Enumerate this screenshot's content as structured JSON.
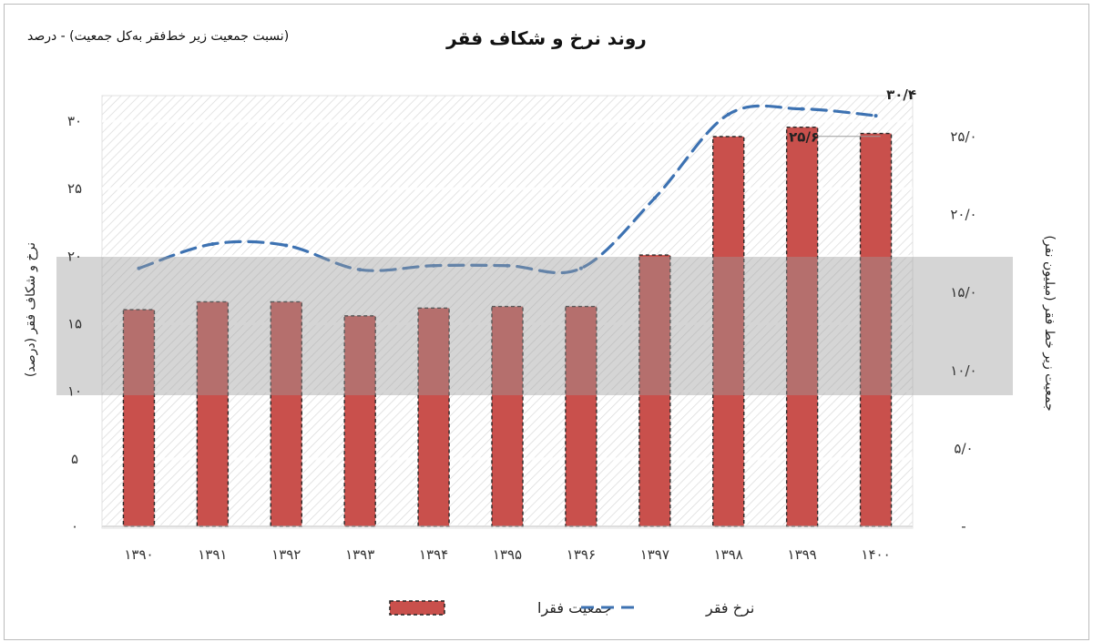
{
  "title": "روند نرخ و شکاف فقر",
  "subtitle": "(نسبت جمعیت زیر خط‌فقر به‌کل جمعیت) - درصد",
  "colors": {
    "bar": "#c9504c",
    "line": "#3d72b2",
    "shade": "#9a9a9a"
  },
  "chart_data": {
    "type": "bar",
    "categories": [
      "۱۳۹۰",
      "۱۳۹۱",
      "۱۳۹۲",
      "۱۳۹۳",
      "۱۳۹۴",
      "۱۳۹۵",
      "۱۳۹۶",
      "۱۳۹۷",
      "۱۳۹۸",
      "۱۳۹۹",
      "۱۴۰۰"
    ],
    "series": [
      {
        "name": "جمعیت فقرا",
        "axis": "right",
        "values": [
          13.9,
          14.4,
          14.4,
          13.5,
          14.0,
          14.1,
          14.1,
          17.4,
          25.0,
          25.6,
          25.2
        ]
      },
      {
        "name": "نرخ فقر",
        "axis": "left",
        "style": "dashed-line",
        "values": [
          19.1,
          20.9,
          20.8,
          19.0,
          19.3,
          19.3,
          19.1,
          24.3,
          30.5,
          30.9,
          30.4
        ]
      }
    ],
    "y_left": {
      "label": "نرخ و شکاف فقر (درصد)",
      "ticks": [
        "۰",
        "۵",
        "۱۰",
        "۱۵",
        "۲۰",
        "۲۵",
        "۳۰"
      ],
      "ylim": [
        0,
        30
      ]
    },
    "y_right": {
      "label": "جمعیت زیر خط فقر (میلیون نفر)",
      "ticks": [
        "-",
        "۵/۰",
        "۱۰/۰",
        "۱۵/۰",
        "۲۰/۰",
        "۲۵/۰"
      ],
      "ylim": [
        0,
        25
      ]
    },
    "data_labels": [
      {
        "series": "نرخ فقر",
        "index": 10,
        "text": "۳۰/۴"
      },
      {
        "series": "جمعیت فقرا",
        "index": 9,
        "text": "۲۵/۶"
      }
    ],
    "legend": {
      "position": "bottom",
      "entries": [
        "جمعیت فقرا",
        "نرخ فقر"
      ]
    }
  }
}
